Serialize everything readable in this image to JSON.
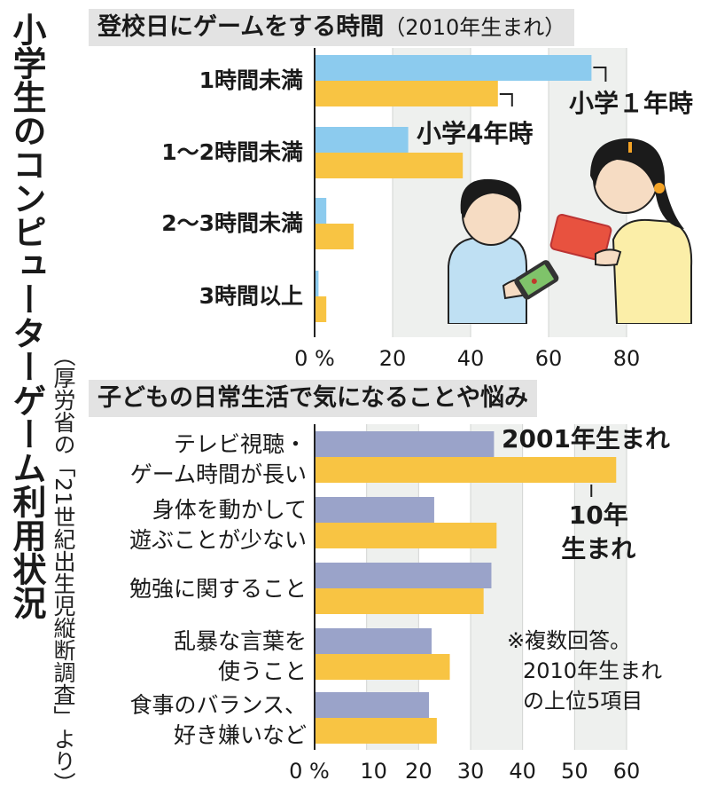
{
  "title": "小学生のコンピューターゲーム利用状況",
  "source": "（厚労省の「21世紀出生児縦断調査」より）",
  "chart_data": [
    {
      "type": "bar",
      "orientation": "horizontal",
      "title": "登校日にゲームをする時間",
      "subtitle": "（2010年生まれ）",
      "categories": [
        "1時間未満",
        "1～2時間未満",
        "2～3時間未満",
        "3時間以上"
      ],
      "series": [
        {
          "name": "小学１年時",
          "color": "#8ccbee",
          "values": [
            71,
            24,
            3,
            1
          ]
        },
        {
          "name": "小学4年時",
          "color": "#f8c443",
          "values": [
            47,
            38,
            10,
            3
          ]
        }
      ],
      "xlim": [
        0,
        80
      ],
      "ticks": [
        "0 %",
        "20",
        "40",
        "60",
        "80"
      ],
      "grid": true
    },
    {
      "type": "bar",
      "orientation": "horizontal",
      "title": "子どもの日常生活で気になることや悩み",
      "categories": [
        [
          "テレビ視聴・",
          "ゲーム時間が長い"
        ],
        [
          "身体を動かして",
          "遊ぶことが少ない"
        ],
        [
          "勉強に関すること"
        ],
        [
          "乱暴な言葉を",
          "使うこと"
        ],
        [
          "食事のバランス、",
          "好き嫌いなど"
        ]
      ],
      "series": [
        {
          "name": "2001年生まれ",
          "color": "#9aa3c9",
          "values": [
            34.5,
            23,
            34,
            22.5,
            22
          ]
        },
        {
          "name": "10年生まれ",
          "color": "#f8c443",
          "values": [
            58,
            35,
            32.5,
            26,
            23.5
          ]
        }
      ],
      "xlim": [
        0,
        60
      ],
      "ticks": [
        "0 %",
        "10",
        "20",
        "30",
        "40",
        "50",
        "60"
      ],
      "grid": true,
      "note": [
        "※複数回答。",
        "2010年生まれ",
        "の上位5項目"
      ]
    }
  ]
}
